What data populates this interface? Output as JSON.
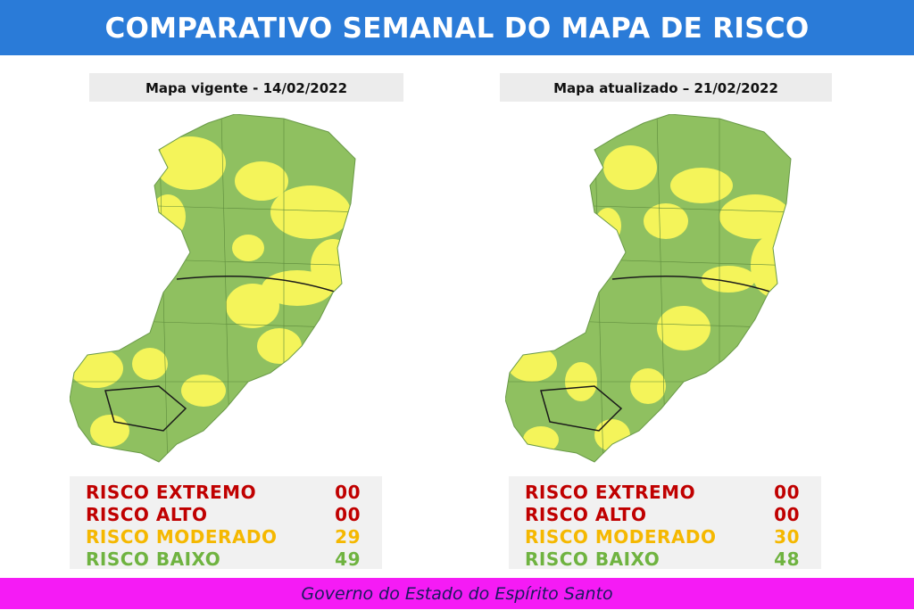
{
  "header": {
    "title": "COMPARATIVO SEMANAL DO MAPA DE RISCO"
  },
  "panels": [
    {
      "label": "Mapa vigente - 14/02/2022",
      "risks": [
        {
          "name": "RISCO EXTREMO",
          "count": "00"
        },
        {
          "name": "RISCO ALTO",
          "count": "00"
        },
        {
          "name": "RISCO MODERADO",
          "count": "29"
        },
        {
          "name": "RISCO BAIXO",
          "count": "49"
        }
      ]
    },
    {
      "label": "Mapa atualizado – 21/02/2022",
      "risks": [
        {
          "name": "RISCO EXTREMO",
          "count": "00"
        },
        {
          "name": "RISCO ALTO",
          "count": "00"
        },
        {
          "name": "RISCO MODERADO",
          "count": "30"
        },
        {
          "name": "RISCO BAIXO",
          "count": "48"
        }
      ]
    }
  ],
  "footer": {
    "text": "Governo do Estado do Espírito Santo"
  }
}
